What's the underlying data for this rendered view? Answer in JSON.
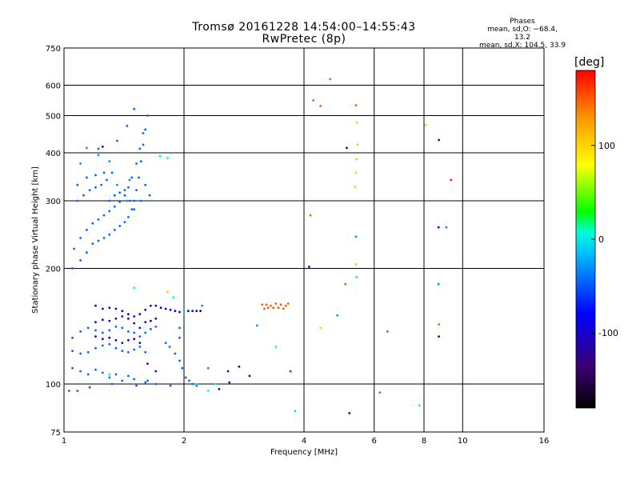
{
  "header": {
    "title_line1": "Tromsø 20161228 14:54:00–14:55:43",
    "title_line2": "RwPretec (8p)"
  },
  "stats": {
    "heading": "Phases",
    "line_o": "mean, sd,O: −68.4, 13.2",
    "line_x": "mean, sd,X: 104.5, 33.9"
  },
  "chart_data": {
    "type": "scatter",
    "xlabel": "Frequency [MHz]",
    "ylabel": "Stationary phase Virtual Height [km]",
    "x_scale": "log",
    "y_scale": "log",
    "xlim": [
      1,
      16
    ],
    "ylim": [
      75,
      750
    ],
    "x_ticks": [
      1,
      2,
      4,
      6,
      8,
      10,
      16
    ],
    "y_ticks": [
      75,
      100,
      200,
      300,
      400,
      500,
      600,
      750
    ],
    "grid": true,
    "colorbar": {
      "label": "[deg]",
      "range": [
        -180,
        180
      ],
      "ticks": [
        100,
        0,
        -100
      ],
      "colors": [
        "#000000",
        "#3c0070",
        "#0000ff",
        "#00b4ff",
        "#00ffdc",
        "#00ff00",
        "#ffff00",
        "#ff9600",
        "#ff0000"
      ]
    },
    "series": [
      {
        "points": [
          [
            1.05,
            200
          ],
          [
            1.1,
            210
          ],
          [
            1.14,
            220
          ],
          [
            1.18,
            232
          ],
          [
            1.22,
            236
          ],
          [
            1.26,
            240
          ],
          [
            1.3,
            245
          ],
          [
            1.34,
            252
          ],
          [
            1.38,
            258
          ],
          [
            1.42,
            264
          ],
          [
            1.45,
            272
          ],
          [
            1.48,
            285
          ],
          [
            1.5,
            300
          ],
          [
            1.52,
            320
          ],
          [
            1.54,
            345
          ],
          [
            1.56,
            380
          ],
          [
            1.58,
            420
          ],
          [
            1.6,
            460
          ],
          [
            1.62,
            500
          ],
          [
            1.06,
            225
          ],
          [
            1.1,
            240
          ],
          [
            1.14,
            252
          ],
          [
            1.18,
            262
          ],
          [
            1.22,
            268
          ],
          [
            1.26,
            275
          ],
          [
            1.3,
            282
          ],
          [
            1.34,
            290
          ],
          [
            1.38,
            298
          ],
          [
            1.42,
            310
          ],
          [
            1.45,
            325
          ],
          [
            1.48,
            345
          ],
          [
            1.52,
            375
          ],
          [
            1.55,
            410
          ],
          [
            1.58,
            450
          ],
          [
            1.08,
            300
          ],
          [
            1.12,
            310
          ],
          [
            1.16,
            320
          ],
          [
            1.2,
            325
          ],
          [
            1.24,
            330
          ],
          [
            1.28,
            340
          ],
          [
            1.32,
            355
          ],
          [
            1.08,
            330
          ],
          [
            1.14,
            345
          ],
          [
            1.2,
            350
          ],
          [
            1.26,
            355
          ],
          [
            1.3,
            300
          ],
          [
            1.34,
            310
          ],
          [
            1.38,
            315
          ],
          [
            1.42,
            320
          ],
          [
            1.46,
            300
          ],
          [
            1.5,
            285
          ],
          [
            1.56,
            300
          ],
          [
            1.6,
            330
          ],
          [
            1.64,
            310
          ],
          [
            1.22,
            410
          ],
          [
            1.36,
            430
          ],
          [
            1.44,
            470
          ],
          [
            1.5,
            520
          ],
          [
            1.05,
            132
          ],
          [
            1.1,
            137
          ],
          [
            1.15,
            140
          ],
          [
            1.2,
            138
          ],
          [
            1.25,
            136
          ],
          [
            1.3,
            138
          ],
          [
            1.35,
            141
          ],
          [
            1.4,
            140
          ],
          [
            1.45,
            137
          ],
          [
            1.5,
            136
          ],
          [
            1.55,
            133
          ],
          [
            1.6,
            136
          ],
          [
            1.65,
            139
          ],
          [
            1.7,
            141
          ],
          [
            1.05,
            122
          ],
          [
            1.1,
            120
          ],
          [
            1.15,
            121
          ],
          [
            1.2,
            124
          ],
          [
            1.25,
            126
          ],
          [
            1.3,
            127
          ],
          [
            1.35,
            124
          ],
          [
            1.4,
            122
          ],
          [
            1.45,
            121
          ],
          [
            1.5,
            123
          ],
          [
            1.55,
            125
          ],
          [
            1.6,
            121
          ],
          [
            1.05,
            110
          ],
          [
            1.1,
            108
          ],
          [
            1.15,
            106
          ],
          [
            1.2,
            109
          ],
          [
            1.25,
            107
          ],
          [
            1.3,
            104
          ],
          [
            1.35,
            106
          ],
          [
            1.4,
            102
          ],
          [
            1.45,
            105
          ],
          [
            1.5,
            103
          ],
          [
            1.6,
            101
          ],
          [
            1.7,
            100
          ],
          [
            1.85,
            99
          ],
          [
            1.03,
            96
          ],
          [
            1.08,
            96
          ],
          [
            1.16,
            98
          ],
          [
            1.32,
            100
          ],
          [
            1.52,
            99
          ],
          [
            1.62,
            102
          ],
          [
            1.8,
            128
          ],
          [
            1.84,
            125
          ],
          [
            1.9,
            120
          ],
          [
            1.95,
            115
          ],
          [
            1.98,
            110
          ],
          [
            2.02,
            104
          ],
          [
            2.06,
            102
          ],
          [
            2.1,
            100
          ],
          [
            2.15,
            99
          ],
          [
            1.95,
            132
          ],
          [
            1.95,
            140
          ]
        ]
      },
      {
        "points": [
          [
            1.2,
            160
          ],
          [
            1.25,
            157
          ],
          [
            1.3,
            158
          ],
          [
            1.35,
            157
          ],
          [
            1.4,
            155
          ],
          [
            1.45,
            152
          ],
          [
            1.5,
            150
          ],
          [
            1.55,
            152
          ],
          [
            1.6,
            156
          ],
          [
            1.65,
            160
          ],
          [
            1.7,
            160
          ],
          [
            1.75,
            158
          ],
          [
            1.8,
            157
          ],
          [
            1.85,
            156
          ],
          [
            1.9,
            155
          ],
          [
            1.95,
            154
          ],
          [
            2.0,
            154
          ],
          [
            2.05,
            155
          ],
          [
            2.1,
            155
          ],
          [
            2.15,
            155
          ],
          [
            2.2,
            155
          ],
          [
            1.2,
            145
          ],
          [
            1.25,
            147
          ],
          [
            1.3,
            146
          ],
          [
            1.35,
            148
          ],
          [
            1.4,
            150
          ],
          [
            1.45,
            148
          ],
          [
            1.5,
            144
          ],
          [
            1.55,
            140
          ],
          [
            1.6,
            145
          ],
          [
            1.65,
            146
          ],
          [
            1.7,
            148
          ],
          [
            1.2,
            133
          ],
          [
            1.25,
            131
          ],
          [
            1.3,
            132
          ],
          [
            1.35,
            130
          ],
          [
            1.4,
            128
          ],
          [
            1.45,
            130
          ],
          [
            1.5,
            131
          ],
          [
            1.55,
            128
          ],
          [
            1.62,
            113
          ],
          [
            1.7,
            108
          ],
          [
            2.45,
            97
          ],
          [
            2.6,
            101
          ],
          [
            2.75,
            111
          ],
          [
            2.58,
            108
          ],
          [
            2.92,
            105
          ],
          [
            1.25,
            415
          ],
          [
            4.12,
            202
          ],
          [
            5.12,
            412
          ],
          [
            5.2,
            84
          ],
          [
            8.72,
            432
          ],
          [
            8.7,
            256
          ],
          [
            8.72,
            133
          ]
        ]
      },
      {
        "points": [
          [
            1.14,
            412
          ],
          [
            1.1,
            375
          ],
          [
            1.22,
            395
          ],
          [
            1.3,
            380
          ],
          [
            1.36,
            330
          ],
          [
            1.44,
            300
          ],
          [
            1.46,
            340
          ],
          [
            2.22,
            160
          ],
          [
            2.3,
            110
          ],
          [
            4.85,
            151
          ],
          [
            6.48,
            137
          ],
          [
            3.05,
            142
          ],
          [
            5.4,
            242
          ],
          [
            8.7,
            182
          ],
          [
            9.1,
            256
          ]
        ]
      },
      {
        "points": [
          [
            1.74,
            392
          ],
          [
            1.82,
            388
          ],
          [
            1.5,
            178
          ],
          [
            1.88,
            168
          ],
          [
            2.0,
            154
          ],
          [
            2.15,
            100
          ],
          [
            2.3,
            96
          ],
          [
            2.4,
            100
          ],
          [
            1.3,
            106
          ],
          [
            5.42,
            190
          ],
          [
            7.8,
            88
          ],
          [
            3.4,
            125
          ]
        ]
      },
      {
        "points": [
          [
            4.4,
            140
          ],
          [
            5.38,
            326
          ],
          [
            5.4,
            355
          ],
          [
            5.42,
            385
          ],
          [
            5.45,
            420
          ],
          [
            5.43,
            480
          ],
          [
            5.4,
            205
          ],
          [
            8.08,
            472
          ],
          [
            1.82,
            174
          ]
        ]
      },
      {
        "points": [
          [
            3.14,
            161
          ],
          [
            3.18,
            157
          ],
          [
            3.22,
            161
          ],
          [
            3.25,
            158
          ],
          [
            3.3,
            160
          ],
          [
            3.35,
            158
          ],
          [
            3.4,
            162
          ],
          [
            3.45,
            158
          ],
          [
            3.5,
            161
          ],
          [
            3.55,
            157
          ],
          [
            3.6,
            160
          ],
          [
            3.65,
            162
          ],
          [
            4.22,
            548
          ],
          [
            4.4,
            530
          ],
          [
            5.4,
            532
          ],
          [
            4.15,
            275
          ],
          [
            5.08,
            182
          ],
          [
            8.72,
            143
          ],
          [
            6.2,
            95
          ],
          [
            4.65,
            622
          ]
        ]
      },
      {
        "points": [
          [
            3.7,
            108
          ],
          [
            9.35,
            340
          ]
        ]
      },
      {
        "points": [
          [
            3.8,
            85
          ]
        ]
      }
    ]
  }
}
